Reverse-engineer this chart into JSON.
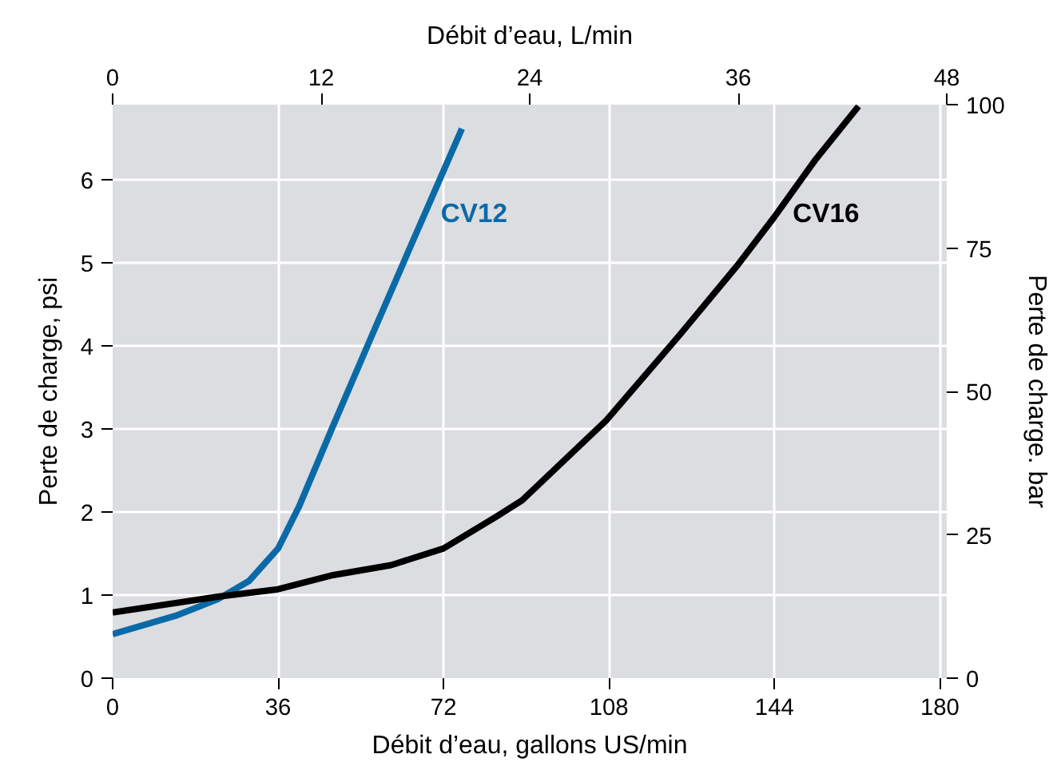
{
  "chart_data": {
    "type": "line",
    "xlabel": "Débit d’eau, gallons US/min",
    "x2label": "Débit d’eau, L/min",
    "ylabel": "Perte de charge, psi",
    "y2label": "Perte de charge. bar",
    "xlim": [
      0,
      181.5
    ],
    "xticks": [
      0,
      36,
      72,
      108,
      144,
      180
    ],
    "x2lim": [
      0,
      48
    ],
    "x2ticks": [
      0,
      12,
      24,
      36,
      48
    ],
    "ylim": [
      0,
      6.9
    ],
    "yticks": [
      0,
      1,
      2,
      3,
      4,
      5,
      6
    ],
    "y2lim": [
      0,
      100
    ],
    "y2ticks": [
      0,
      25,
      50,
      75,
      100
    ],
    "grid": true,
    "line_style": "solid",
    "marker": "none",
    "series": [
      {
        "name": "CV12",
        "color": "#0a6aa8",
        "x": [
          0,
          13.7,
          22.9,
          29.7,
          36,
          40.6,
          48,
          56,
          65.1,
          76
        ],
        "values": [
          0.53,
          0.75,
          0.95,
          1.17,
          1.56,
          2.07,
          3.04,
          4.07,
          5.23,
          6.61
        ]
      },
      {
        "name": "CV16",
        "color": "#000000",
        "x": [
          0,
          22.9,
          36,
          48,
          60.6,
          72,
          83.4,
          89.1,
          107.4,
          123.4,
          136,
          144,
          153.1,
          162.3
        ],
        "values": [
          0.79,
          0.98,
          1.07,
          1.24,
          1.36,
          1.56,
          1.94,
          2.14,
          3.1,
          4.13,
          4.97,
          5.55,
          6.25,
          6.88
        ]
      }
    ]
  }
}
